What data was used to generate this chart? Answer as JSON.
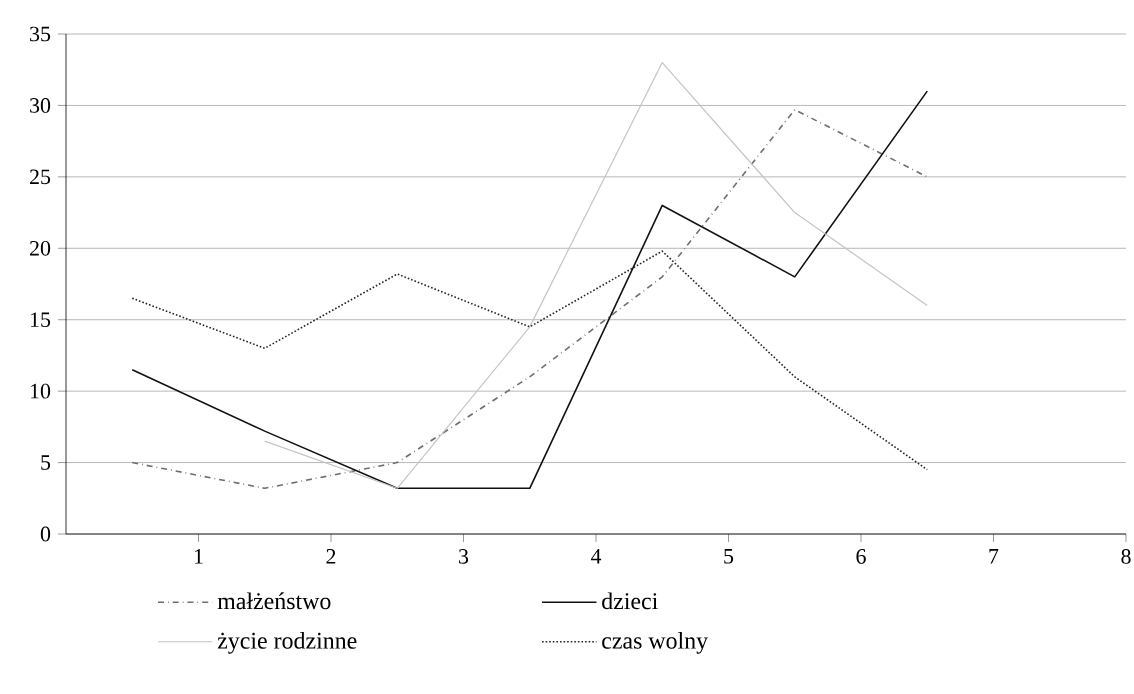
{
  "chart_data": {
    "type": "line",
    "xlim": [
      0,
      8
    ],
    "xticks": [
      1,
      2,
      3,
      4,
      5,
      6,
      7,
      8
    ],
    "ylim": [
      0,
      35
    ],
    "yticks": [
      0,
      5,
      10,
      15,
      20,
      25,
      30,
      35
    ],
    "grid": "y",
    "legend": "bottom",
    "series": [
      {
        "name": "małżeństwo",
        "color": "#6e6e6e",
        "line_style": "dashdot",
        "x": [
          0.5,
          1.5,
          2.5,
          3.5,
          4.5,
          5.5,
          6.5
        ],
        "values": [
          5,
          3.2,
          5,
          11,
          18,
          29.7,
          25
        ]
      },
      {
        "name": "dzieci",
        "color": "#111111",
        "line_style": "solid",
        "x": [
          0.5,
          1.5,
          2.5,
          3.5,
          4.5,
          5.5,
          6.5
        ],
        "values": [
          11.5,
          7.2,
          3.2,
          3.2,
          23,
          18,
          31
        ]
      },
      {
        "name": "życie rodzinne",
        "color": "#c4c4c4",
        "line_style": "solid",
        "x": [
          1.5,
          2.5,
          3.5,
          4.5,
          5.5,
          6.5
        ],
        "values": [
          6.5,
          3.2,
          14.5,
          33,
          22.5,
          16
        ]
      },
      {
        "name": "czas wolny",
        "color": "#222222",
        "line_style": "dotted",
        "x": [
          0.5,
          1.5,
          2.5,
          3.5,
          4.5,
          5.5,
          6.5
        ],
        "values": [
          16.5,
          13,
          18.2,
          14.5,
          19.8,
          11,
          4.5
        ]
      }
    ]
  }
}
